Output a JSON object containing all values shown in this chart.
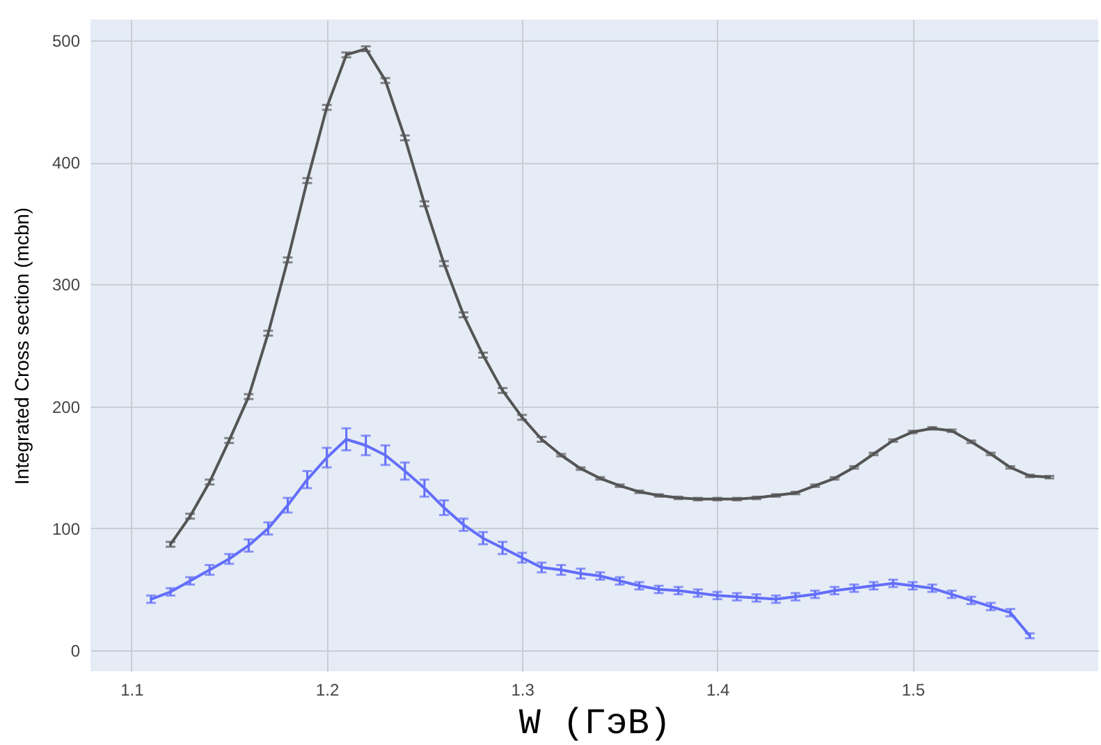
{
  "chart_data": {
    "type": "line",
    "xlabel": "W (ГэВ)",
    "ylabel": "Integrated Cross section (mcbn)",
    "xlim": [
      1.079,
      1.595
    ],
    "xticks": [
      1.1,
      1.2,
      1.3,
      1.4,
      1.5
    ],
    "ylim": [
      -17,
      517
    ],
    "yticks": [
      0,
      100,
      200,
      300,
      400,
      500
    ],
    "grid": true,
    "marker": "none",
    "line_style": "solid",
    "series": [
      {
        "color": "#555555",
        "x": [
          1.12,
          1.13,
          1.14,
          1.15,
          1.16,
          1.17,
          1.18,
          1.19,
          1.2,
          1.21,
          1.22,
          1.23,
          1.24,
          1.25,
          1.26,
          1.27,
          1.28,
          1.29,
          1.3,
          1.31,
          1.32,
          1.33,
          1.34,
          1.35,
          1.36,
          1.37,
          1.38,
          1.39,
          1.4,
          1.41,
          1.42,
          1.43,
          1.44,
          1.45,
          1.46,
          1.47,
          1.48,
          1.49,
          1.5,
          1.51,
          1.52,
          1.53,
          1.54,
          1.55,
          1.56,
          1.57
        ],
        "values": [
          87,
          110,
          138,
          172,
          208,
          260,
          320,
          385,
          445,
          488,
          493,
          467,
          420,
          366,
          317,
          275,
          242,
          213,
          191,
          173,
          160,
          149,
          141,
          135,
          130,
          127,
          125,
          124,
          124,
          124,
          125,
          127,
          129,
          135,
          141,
          150,
          161,
          172,
          179,
          182,
          180,
          171,
          161,
          150,
          143,
          142
        ],
        "errors": [
          2,
          2,
          2,
          2,
          2,
          2,
          2,
          2,
          2,
          2,
          2,
          2,
          2,
          2,
          2,
          2,
          2,
          2,
          2,
          2,
          1,
          1,
          1,
          1,
          1,
          1,
          1,
          1,
          1,
          1,
          1,
          1,
          1,
          1,
          1,
          1,
          1,
          1,
          1,
          1,
          1,
          1,
          1,
          1,
          1,
          1
        ]
      },
      {
        "color": "#636efa",
        "x": [
          1.11,
          1.12,
          1.13,
          1.14,
          1.15,
          1.16,
          1.17,
          1.18,
          1.19,
          1.2,
          1.21,
          1.22,
          1.23,
          1.24,
          1.25,
          1.26,
          1.27,
          1.28,
          1.29,
          1.3,
          1.31,
          1.32,
          1.33,
          1.34,
          1.35,
          1.36,
          1.37,
          1.38,
          1.39,
          1.4,
          1.41,
          1.42,
          1.43,
          1.44,
          1.45,
          1.46,
          1.47,
          1.48,
          1.49,
          1.5,
          1.51,
          1.52,
          1.53,
          1.54,
          1.55,
          1.56
        ],
        "values": [
          42,
          48,
          57,
          66,
          75,
          86,
          100,
          119,
          140,
          158,
          173,
          168,
          160,
          147,
          133,
          117,
          103,
          92,
          84,
          76,
          68,
          66,
          63,
          61,
          57,
          53,
          50,
          49,
          47,
          45,
          44,
          43,
          42,
          44,
          46,
          49,
          51,
          53,
          55,
          53,
          51,
          46,
          41,
          36,
          31,
          12
        ],
        "errors": [
          3,
          3,
          3,
          4,
          4,
          5,
          5,
          6,
          7,
          8,
          9,
          8,
          8,
          7,
          7,
          6,
          5,
          5,
          5,
          4,
          4,
          4,
          4,
          3,
          3,
          3,
          3,
          3,
          3,
          3,
          3,
          3,
          3,
          3,
          3,
          3,
          3,
          3,
          3,
          3,
          3,
          3,
          3,
          3,
          3,
          2
        ]
      }
    ]
  }
}
